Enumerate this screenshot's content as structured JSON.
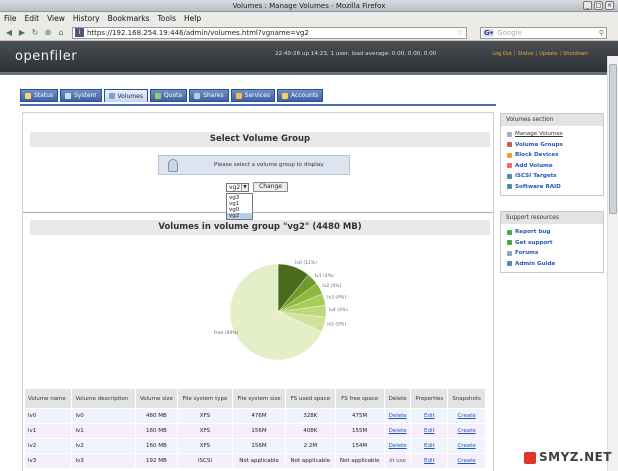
{
  "window": {
    "title": "Volumes : Manage Volumes - Mozilla Firefox"
  },
  "menubar": {
    "items": [
      "File",
      "Edit",
      "View",
      "History",
      "Bookmarks",
      "Tools",
      "Help"
    ]
  },
  "navbar": {
    "url": "https://192.168.254.19:446/admin/volumes.html?vgname=vg2",
    "search_placeholder": "Google"
  },
  "header": {
    "logo": "openfiler",
    "status": "22:40:28 up 14:23, 1 user, load average: 0.00, 0.00, 0.00",
    "links": [
      "Log Out",
      "Status",
      "Update",
      "Shutdown"
    ]
  },
  "tabs": [
    "Status",
    "System",
    "Volumes",
    "Quota",
    "Shares",
    "Services",
    "Accounts"
  ],
  "select_section": {
    "title": "Select Volume Group",
    "info": "Please select a volume group to display.",
    "selected": "vg2",
    "options": [
      "vg3",
      "vg1",
      "vg0",
      "vg2"
    ],
    "button": "Change"
  },
  "volumes_section": {
    "title": "Volumes in volume group \"vg2\" (4480 MB)"
  },
  "chart_data": {
    "type": "pie",
    "labels": [
      "lv0 (11%)",
      "lv1 (4%)",
      "lv2 (4%)",
      "lv3 (4%)",
      "lv4 (4%)",
      "lv5 (5%)",
      "Free (69%)"
    ],
    "values": [
      11,
      4,
      4,
      4,
      4,
      5,
      69
    ],
    "colors": [
      "#4a6b1c",
      "#6f9a2c",
      "#8fb83e",
      "#a8cc5c",
      "#bcd97a",
      "#cfe39a",
      "#e4efc8"
    ]
  },
  "table": {
    "headers": [
      "Volume name",
      "Volume description",
      "Volume size",
      "File system type",
      "File system size",
      "FS used space",
      "FS free space",
      "Delete",
      "Properties",
      "Snapshots"
    ],
    "rows": [
      [
        "lv0",
        "lv0",
        "480 MB",
        "XFS",
        "476M",
        "328K",
        "475M",
        "Delete",
        "Edit",
        "Create"
      ],
      [
        "lv1",
        "lv1",
        "160 MB",
        "XFS",
        "156M",
        "408K",
        "155M",
        "Delete",
        "Edit",
        "Create"
      ],
      [
        "lv2",
        "lv2",
        "160 MB",
        "XFS",
        "156M",
        "2.2M",
        "154M",
        "Delete",
        "Edit",
        "Create"
      ],
      [
        "lv3",
        "lv3",
        "192 MB",
        "iSCSI",
        "Not applicable",
        "Not applicable",
        "Not applicable",
        "In use",
        "Edit",
        "Create"
      ]
    ]
  },
  "sidebar": {
    "volumes_section": {
      "title": "Volumes section",
      "items": [
        "Manage Volumes",
        "Volume Groups",
        "Block Devices",
        "Add Volume",
        "iSCSI Targets",
        "Software RAID"
      ]
    },
    "support": {
      "title": "Support resources",
      "items": [
        "Report bug",
        "Get support",
        "Forums",
        "Admin Guide"
      ]
    }
  },
  "watermark": "SMYZ.NET"
}
